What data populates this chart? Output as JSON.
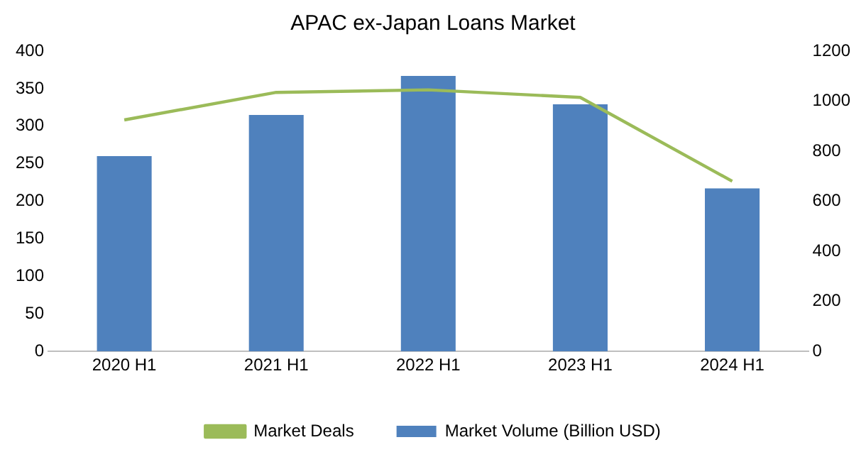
{
  "chart_data": {
    "type": "bar",
    "title": "APAC ex-Japan Loans Market",
    "categories": [
      "2020 H1",
      "2021 H1",
      "2022 H1",
      "2023 H1",
      "2024 H1"
    ],
    "series": [
      {
        "name": "Market Volume (Billion USD)",
        "color": "#4f81bd",
        "values": [
          260,
          315,
          367,
          329,
          217
        ]
      },
      {
        "name": "Market Deals",
        "type": "line",
        "axis": "y2",
        "color": "#9bbb59",
        "values": [
          925,
          1035,
          1045,
          1015,
          680
        ]
      }
    ],
    "ylim": [
      0,
      400
    ],
    "yticks": [
      0,
      50,
      100,
      150,
      200,
      250,
      300,
      350,
      400
    ],
    "y2lim": [
      0,
      1200
    ],
    "y2ticks": [
      0,
      200,
      400,
      600,
      800,
      1000,
      1200
    ],
    "grid": false,
    "legend": "bottom",
    "marker": "none"
  }
}
